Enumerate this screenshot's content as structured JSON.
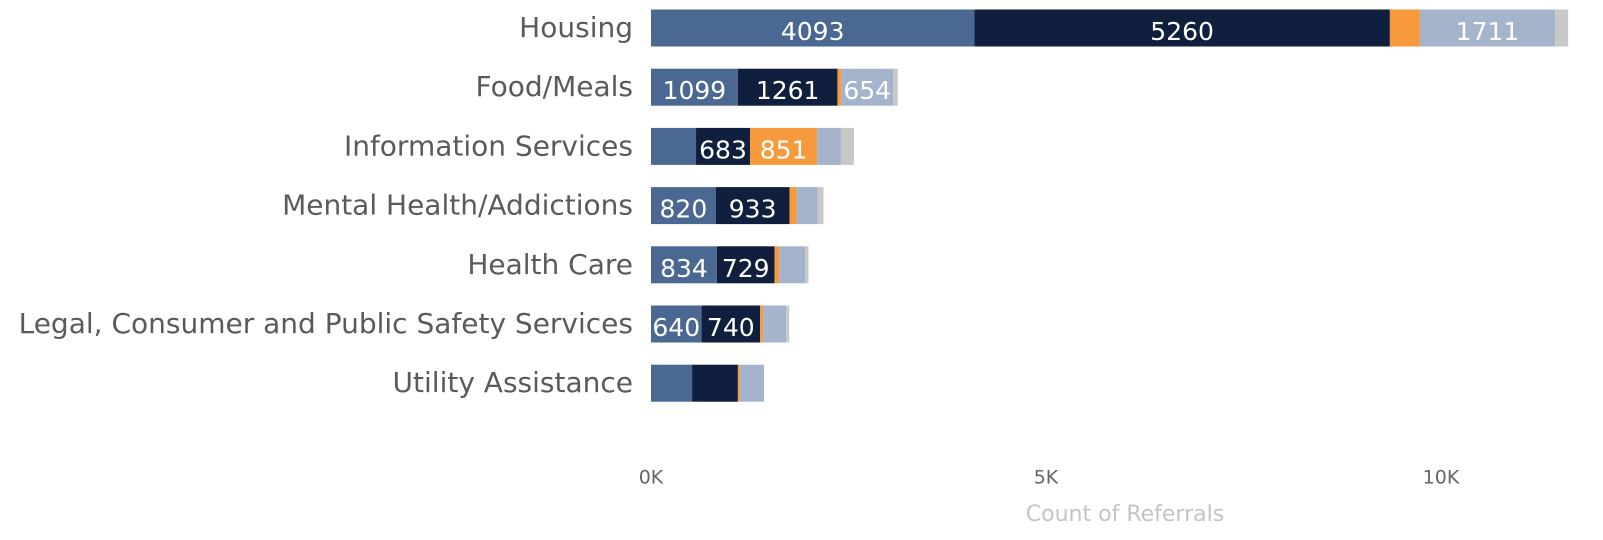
{
  "chart_data": {
    "type": "stacked-bar-horizontal",
    "categories": [
      "Housing",
      "Food/Meals",
      "Information Services",
      "Mental Health/Addictions",
      "Health Care",
      "Legal, Consumer and Public Safety Services",
      "Utility Assistance"
    ],
    "series": [
      {
        "color": "#4a6891",
        "values": [
          4093,
          1099,
          570,
          820,
          834,
          640,
          520
        ]
      },
      {
        "color": "#0f1f3d",
        "values": [
          5260,
          1261,
          683,
          933,
          729,
          740,
          580
        ]
      },
      {
        "color": "#f79a3e",
        "values": [
          380,
          50,
          851,
          90,
          60,
          40,
          25
        ]
      },
      {
        "color": "#a3b4cc",
        "values": [
          1711,
          654,
          300,
          265,
          330,
          290,
          305
        ]
      },
      {
        "color": "#c8c8c8",
        "values": [
          165,
          60,
          165,
          75,
          40,
          40,
          0
        ]
      }
    ],
    "xlim": [
      0,
      12000
    ],
    "xticks": [
      {
        "value": 0,
        "label": "0K"
      },
      {
        "value": 5000,
        "label": "5K"
      },
      {
        "value": 10000,
        "label": "10K"
      }
    ],
    "xlabel": "Count of Referrals"
  }
}
